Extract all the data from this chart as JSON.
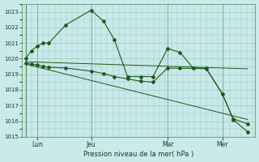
{
  "background_color": "#c8eaea",
  "grid_color": "#a0c8c0",
  "line_color": "#1a5c1a",
  "marker_color": "#1a5c1a",
  "xlabel": "Pression niveau de la mer( hPa )",
  "ylim": [
    1015,
    1023.5
  ],
  "yticks": [
    1015,
    1016,
    1017,
    1018,
    1019,
    1020,
    1021,
    1022,
    1023
  ],
  "day_labels": [
    "Lun",
    "Jeu",
    "Mar",
    "Mer"
  ],
  "day_positions": [
    16,
    90,
    195,
    270
  ],
  "series1_x": [
    0,
    8,
    16,
    24,
    32,
    55,
    90,
    107,
    122,
    140,
    158,
    175,
    195,
    212,
    230,
    248,
    270,
    285,
    305
  ],
  "series1_y": [
    1020.0,
    1020.5,
    1020.8,
    1021.0,
    1021.0,
    1022.15,
    1023.1,
    1022.4,
    1021.2,
    1018.85,
    1018.85,
    1018.85,
    1020.65,
    1020.4,
    1019.4,
    1019.38,
    1017.75,
    1016.15,
    1015.82
  ],
  "series2_x": [
    0,
    8,
    16,
    24,
    32,
    55,
    90,
    107,
    122,
    140,
    158,
    175,
    195,
    212,
    230,
    248,
    270,
    285,
    305
  ],
  "series2_y": [
    1019.7,
    1019.65,
    1019.6,
    1019.5,
    1019.45,
    1019.4,
    1019.2,
    1019.05,
    1018.85,
    1018.7,
    1018.55,
    1018.5,
    1019.4,
    1019.38,
    1019.38,
    1019.35,
    1017.75,
    1016.1,
    1015.3
  ],
  "trend1_x": [
    0,
    305
  ],
  "trend1_y": [
    1019.8,
    1019.35
  ],
  "trend2_x": [
    0,
    305
  ],
  "trend2_y": [
    1019.65,
    1016.1
  ],
  "vlines_x": [
    0,
    16,
    90,
    195,
    270
  ],
  "xlim": [
    -5,
    315
  ]
}
